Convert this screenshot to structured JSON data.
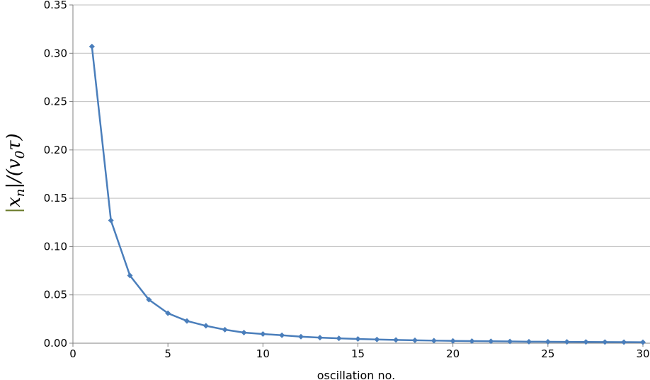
{
  "chart_data": {
    "type": "line",
    "xlabel": "oscillation no.",
    "ylabel": "|x_n|/(v_0τ)",
    "ylabel_parts": {
      "bar_left": "|",
      "x": "x",
      "n": "n",
      "bar_right": "|/(v",
      "zero": "0",
      "tau": "τ)"
    },
    "xlim": [
      0,
      30
    ],
    "ylim": [
      0,
      0.35
    ],
    "x_ticks": [
      "0",
      "5",
      "10",
      "15",
      "20",
      "25",
      "30"
    ],
    "y_ticks": [
      "0.00",
      "0.05",
      "0.10",
      "0.15",
      "0.20",
      "0.25",
      "0.30",
      "0.35"
    ],
    "grid": true,
    "colors": {
      "series": "#4a7ebb",
      "grid": "#bfbfbf"
    },
    "series": [
      {
        "x": [
          1,
          2,
          3,
          4,
          5,
          6,
          7,
          8,
          9,
          10,
          11,
          12,
          13,
          14,
          15,
          16,
          17,
          18,
          19,
          20,
          21,
          22,
          23,
          24,
          25,
          26,
          27,
          28,
          29,
          30
        ],
        "values": [
          0.307,
          0.127,
          0.07,
          0.045,
          0.031,
          0.023,
          0.018,
          0.014,
          0.011,
          0.0095,
          0.0082,
          0.0068,
          0.0058,
          0.005,
          0.0044,
          0.0038,
          0.0034,
          0.003,
          0.0027,
          0.0024,
          0.0022,
          0.002,
          0.0018,
          0.0016,
          0.0015,
          0.0014,
          0.0013,
          0.0012,
          0.0011,
          0.001
        ]
      }
    ]
  }
}
